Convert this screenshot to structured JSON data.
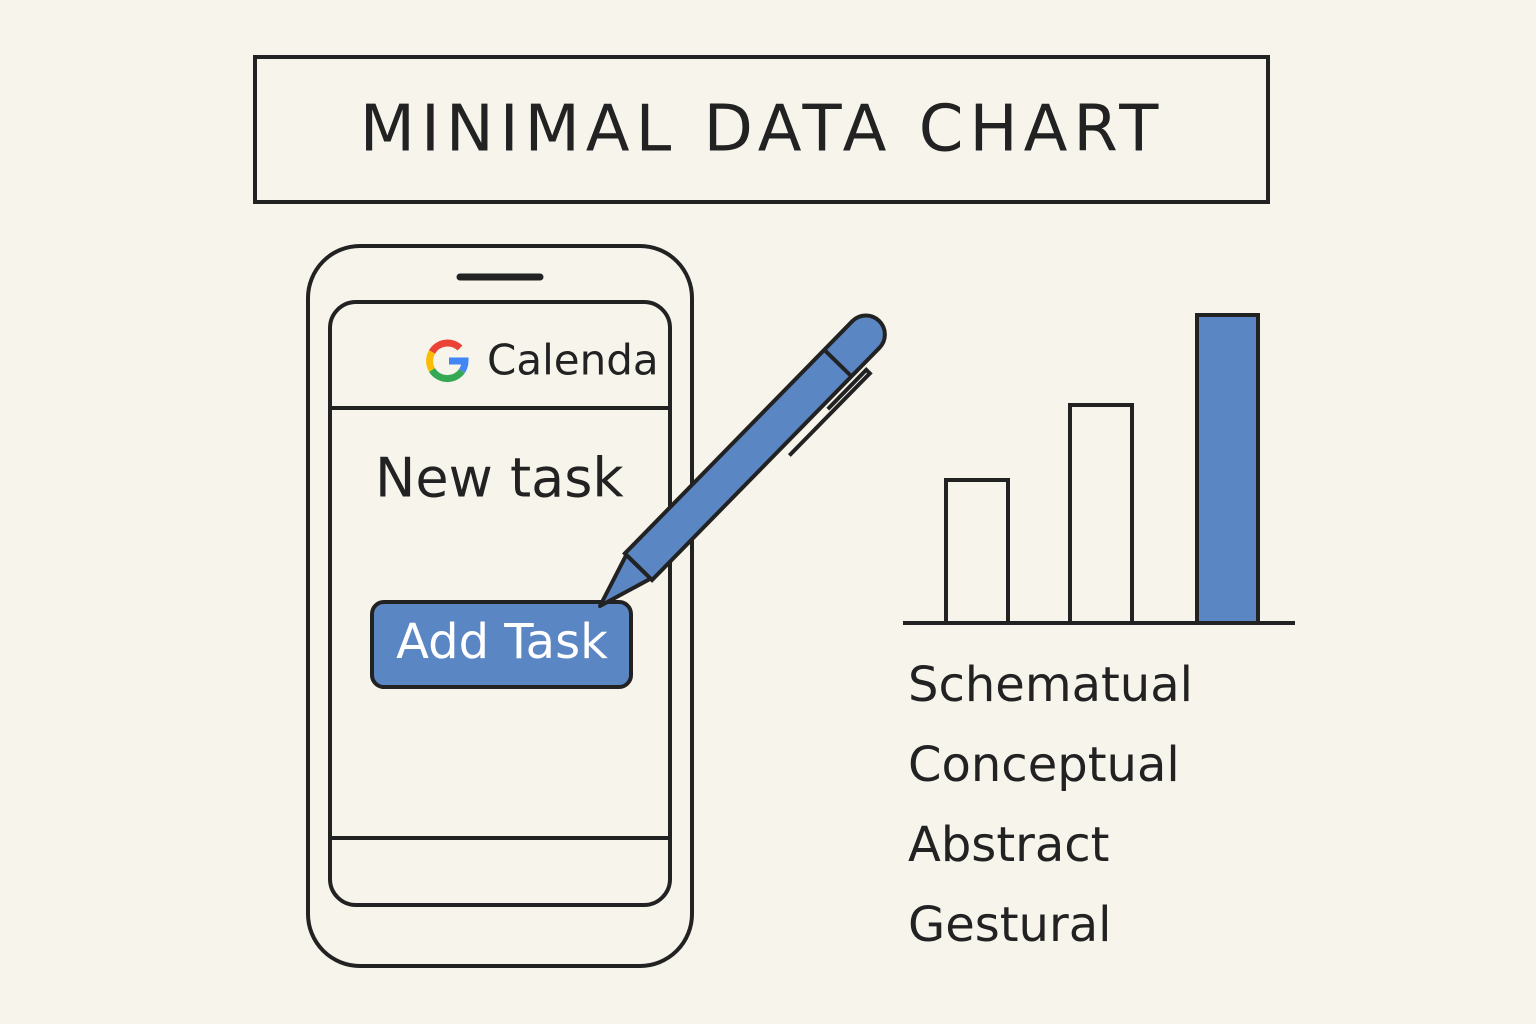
{
  "header": {
    "title": "MINIMAL DATA CHART"
  },
  "phone": {
    "app_name": "Calenda",
    "task_label": "New task",
    "button": "Add Task"
  },
  "labels": [
    "Schematual",
    "Conceptual",
    "Abstract",
    "Gestural"
  ]
}
